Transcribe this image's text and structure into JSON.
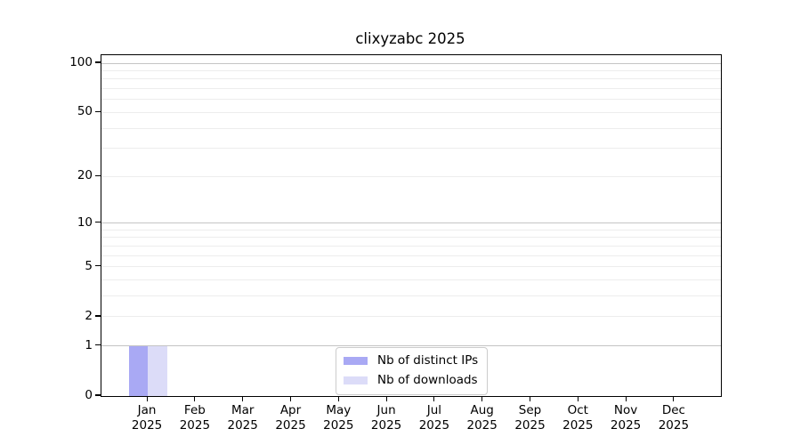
{
  "title": "clixyzabc 2025",
  "colors": {
    "bar_distinct_ips": "#a9a9f4",
    "bar_downloads": "#dcdcf8",
    "grid_major": "#c4c4c4",
    "grid_minor": "#ededed",
    "axis_frame": "#000000",
    "legend_border": "#cccccc"
  },
  "chart_data": {
    "type": "bar",
    "title": "clixyzabc 2025",
    "categories": [
      "Jan",
      "Feb",
      "Mar",
      "Apr",
      "May",
      "Jun",
      "Jul",
      "Aug",
      "Sep",
      "Oct",
      "Nov",
      "Dec"
    ],
    "category_year": "2025",
    "series": [
      {
        "name": "Nb of distinct IPs",
        "color": "#a9a9f4",
        "values": [
          1,
          0,
          0,
          0,
          0,
          0,
          0,
          0,
          0,
          0,
          0,
          0
        ]
      },
      {
        "name": "Nb of downloads",
        "color": "#dcdcf8",
        "values": [
          1,
          0,
          0,
          0,
          0,
          0,
          0,
          0,
          0,
          0,
          0,
          0
        ]
      }
    ],
    "xlabel": "",
    "ylabel": "",
    "y_axis": {
      "scale": "log1p",
      "ylim": [
        0,
        112
      ],
      "labeled_ticks": [
        0,
        1,
        2,
        5,
        10,
        20,
        50,
        100
      ],
      "major_gridlines": [
        1,
        10,
        100
      ],
      "minor_gridlines": [
        2,
        3,
        4,
        5,
        6,
        7,
        8,
        9,
        20,
        30,
        40,
        50,
        60,
        70,
        80,
        90
      ]
    },
    "grid": true,
    "legend_position": "lower center"
  }
}
